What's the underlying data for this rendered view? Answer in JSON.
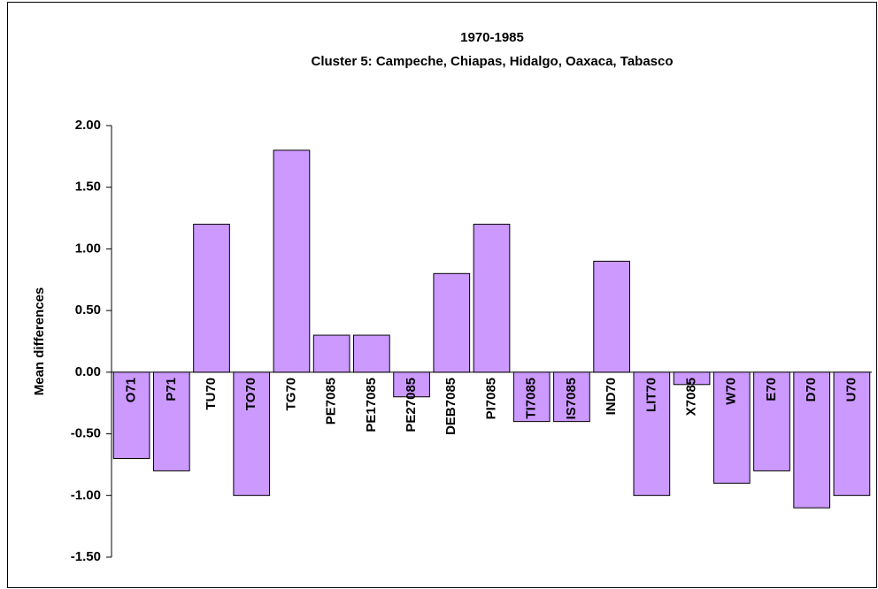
{
  "chart_data": {
    "type": "bar",
    "title": "1970-1985",
    "subtitle": "Cluster 5: Campeche, Chiapas, Hidalgo, Oaxaca,  Tabasco",
    "y_label": "Mean differences",
    "categories": [
      "O71",
      "P71",
      "TU70",
      "TO70",
      "TG70",
      "PE7085",
      "PE17085",
      "PE27085",
      "DEB7085",
      "PI7085",
      "TI7085",
      "IS7085",
      "IND70",
      "LIT70",
      "X7085",
      "W70",
      "E70",
      "D70",
      "U70"
    ],
    "values": [
      -0.7,
      -0.8,
      1.2,
      -1.0,
      1.8,
      0.3,
      0.3,
      -0.2,
      0.8,
      1.2,
      -0.4,
      -0.4,
      0.9,
      -1.0,
      -0.1,
      -0.9,
      -0.8,
      -1.1,
      -1.0
    ],
    "color": "#cc99ff",
    "ylim": [
      -1.5,
      2
    ],
    "yticks": [
      {
        "value": -1.5,
        "label": "-1.50"
      },
      {
        "value": -1,
        "label": "-1.00"
      },
      {
        "value": -0.5,
        "label": "-0.50"
      },
      {
        "value": 0,
        "label": "0.00"
      },
      {
        "value": 0.5,
        "label": "0.50"
      },
      {
        "value": 1,
        "label": "1.00"
      },
      {
        "value": 1.5,
        "label": "1.50"
      },
      {
        "value": 2,
        "label": "2.00"
      }
    ],
    "grid": false
  }
}
